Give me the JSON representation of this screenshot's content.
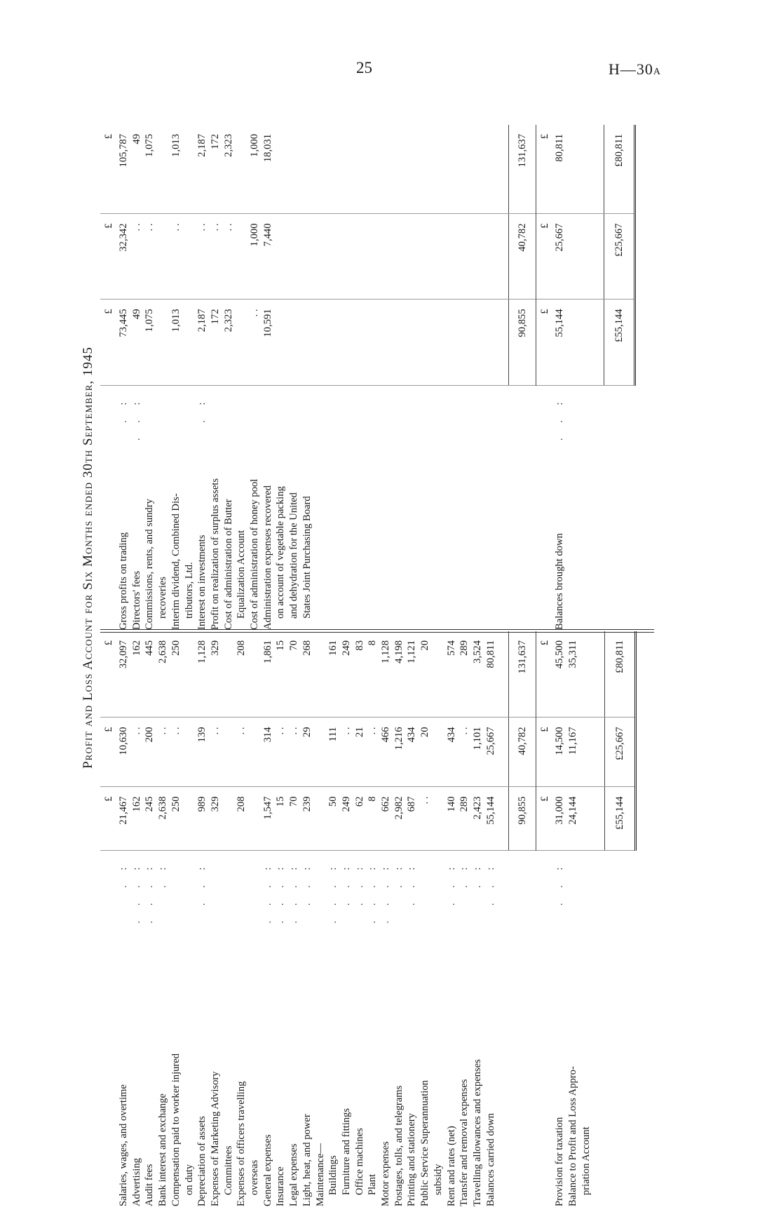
{
  "page": {
    "number": "25",
    "ref": "H—30",
    "ref_suffix": "A"
  },
  "title": "Profit and Loss Account for Six Months ended 30th September, 1945",
  "currency_header": [
    "£",
    "£",
    "£"
  ],
  "debit": {
    "lines": [
      {
        "label": "Salaries, wages, and overtime",
        "level": 0,
        "leader": ". :",
        "values": [
          "21,467",
          "10,630",
          "32,097"
        ]
      },
      {
        "label": "Advertising",
        "level": 0,
        "leader": ". . . :",
        "values": [
          "162",
          ". .",
          "162"
        ]
      },
      {
        "label": "Audit fees",
        "level": 0,
        "leader": ". . . :",
        "values": [
          "245",
          "200",
          "445"
        ]
      },
      {
        "label": "Bank interest and exchange",
        "level": 0,
        "leader": ". :",
        "values": [
          "2,638",
          ". .",
          "2,638"
        ]
      },
      {
        "label": "Compensation paid to worker injured",
        "level": 0,
        "leader": "",
        "values": [
          "250",
          ". .",
          "250"
        ]
      },
      {
        "label": "on duty",
        "level": 1,
        "leader": "",
        "values": [
          "",
          "",
          ""
        ]
      },
      {
        "label": "Depreciation of assets",
        "level": 0,
        "leader": ". . :",
        "values": [
          "989",
          "139",
          "1,128"
        ]
      },
      {
        "label": "Expenses of Marketing Advisory",
        "level": 0,
        "leader": "",
        "values": [
          "329",
          ". .",
          "329"
        ]
      },
      {
        "label": "Committees",
        "level": 1,
        "leader": "",
        "values": [
          "",
          "",
          ""
        ]
      },
      {
        "label": "Expenses of officers travelling",
        "level": 0,
        "leader": "",
        "values": [
          "208",
          ". .",
          "208"
        ]
      },
      {
        "label": "overseas",
        "level": 1,
        "leader": "",
        "values": [
          "",
          "",
          ""
        ]
      },
      {
        "label": "General expenses",
        "level": 0,
        "leader": ". . . :",
        "values": [
          "1,547",
          "314",
          "1,861"
        ]
      },
      {
        "label": "Insurance",
        "level": 0,
        "leader": ". . . :",
        "values": [
          "15",
          ". .",
          "15"
        ]
      },
      {
        "label": "Legal expenses",
        "level": 0,
        "leader": ". . . :",
        "values": [
          "70",
          ". .",
          "70"
        ]
      },
      {
        "label": "Light, heat, and power",
        "level": 0,
        "leader": ". . :",
        "values": [
          "239",
          "29",
          "268"
        ]
      },
      {
        "label": "Maintenance—",
        "level": 0,
        "leader": "",
        "values": [
          "",
          "",
          ""
        ]
      },
      {
        "label": "Buildings",
        "level": 1,
        "leader": ". . . :",
        "values": [
          "50",
          "111",
          "161"
        ]
      },
      {
        "label": "Furniture and fittings",
        "level": 1,
        "leader": ". . :",
        "values": [
          "249",
          ". .",
          "249"
        ]
      },
      {
        "label": "Office machines",
        "level": 1,
        "leader": ". . :",
        "values": [
          "62",
          "21",
          "83"
        ]
      },
      {
        "label": "Plant",
        "level": 1,
        "leader": ". . . :",
        "values": [
          "8",
          ". .",
          "8"
        ]
      },
      {
        "label": "Motor expenses",
        "level": 0,
        "leader": ". . . :",
        "values": [
          "662",
          "466",
          "1,128"
        ]
      },
      {
        "label": "Postages, tolls, and telegrams",
        "level": 0,
        "leader": ". :",
        "values": [
          "2,982",
          "1,216",
          "4,198"
        ]
      },
      {
        "label": "Printing and stationery",
        "level": 0,
        "leader": ". . :",
        "values": [
          "687",
          "434",
          "1,121"
        ]
      },
      {
        "label": "Public Service Superannuation",
        "level": 0,
        "leader": "",
        "values": [
          ". .",
          "20",
          "20"
        ]
      },
      {
        "label": "subsidy",
        "level": 1,
        "leader": "",
        "values": [
          "",
          "",
          ""
        ]
      },
      {
        "label": "Rent and rates (net)",
        "level": 0,
        "leader": ". . :",
        "values": [
          "140",
          "434",
          "574"
        ]
      },
      {
        "label": "Transfer and removal expenses",
        "level": 0,
        "leader": ". :",
        "values": [
          "289",
          ". .",
          "289"
        ]
      },
      {
        "label": "Travelling allowances and expenses",
        "level": 0,
        "leader": ". :",
        "values": [
          "2,423",
          "1,101",
          "3,524"
        ]
      },
      {
        "label": "Balances carried down",
        "level": 0,
        "leader": ". . :",
        "values": [
          "55,144",
          "25,667",
          "80,811"
        ]
      }
    ],
    "totals": [
      "90,855",
      "40,782",
      "131,637"
    ],
    "lower": {
      "lines": [
        {
          "label": "Provision for taxation",
          "level": 0,
          "leader": ". . :",
          "values": [
            "31,000",
            "14,500",
            "45,500"
          ]
        },
        {
          "label": "Balance to Profit and Loss Appro-",
          "level": 0,
          "leader": "",
          "values": [
            "24,144",
            "11,167",
            "35,311"
          ]
        },
        {
          "label": "priation Account",
          "level": 1,
          "leader": "",
          "values": [
            "",
            "",
            ""
          ]
        }
      ],
      "totals": [
        "£55,144",
        "£25,667",
        "£80,811"
      ]
    }
  },
  "credit": {
    "lines": [
      {
        "label": "Gross profits on trading",
        "level": 0,
        "leader": ". :",
        "values": [
          "73,445",
          "32,342",
          "105,787"
        ]
      },
      {
        "label": "Directors' fees",
        "level": 0,
        "leader": ". . :",
        "values": [
          "49",
          ". .",
          "49"
        ]
      },
      {
        "label": "Commissions, rents, and sundry",
        "level": 0,
        "leader": "",
        "values": [
          "1,075",
          ". .",
          "1,075"
        ]
      },
      {
        "label": "recoveries",
        "level": 1,
        "leader": "",
        "values": [
          "",
          "",
          ""
        ]
      },
      {
        "label": "Interim dividend, Combined Dis-",
        "level": 0,
        "leader": "",
        "values": [
          "1,013",
          ". .",
          "1,013"
        ]
      },
      {
        "label": "tributors, Ltd.",
        "level": 1,
        "leader": "",
        "values": [
          "",
          "",
          ""
        ]
      },
      {
        "label": "Interest on investments",
        "level": 0,
        "leader": ". :",
        "values": [
          "2,187",
          ". .",
          "2,187"
        ]
      },
      {
        "label": "Profit on realization of surplus assets",
        "level": 0,
        "leader": "",
        "values": [
          "172",
          ". .",
          "172"
        ]
      },
      {
        "label": "Cost of administration of Butter",
        "level": 0,
        "leader": "",
        "values": [
          "2,323",
          ". .",
          "2,323"
        ]
      },
      {
        "label": "Equalization Account",
        "level": 1,
        "leader": "",
        "values": [
          "",
          "",
          ""
        ]
      },
      {
        "label": "Cost of administration of honey pool",
        "level": 0,
        "leader": "",
        "values": [
          ". .",
          "1,000",
          "1,000"
        ]
      },
      {
        "label": "Administration expenses recovered",
        "level": 0,
        "leader": "",
        "values": [
          "10,591",
          "7,440",
          "18,031"
        ]
      },
      {
        "label": "on account of vegetable packing",
        "level": 1,
        "leader": "",
        "values": [
          "",
          "",
          ""
        ]
      },
      {
        "label": "and dehydration for the United",
        "level": 1,
        "leader": "",
        "values": [
          "",
          "",
          ""
        ]
      },
      {
        "label": "States Joint Purchasing Board",
        "level": 1,
        "leader": "",
        "values": [
          "",
          "",
          ""
        ]
      }
    ],
    "totals": [
      "90,855",
      "40,782",
      "131,637"
    ],
    "lower": {
      "lines": [
        {
          "label": "Balances brought down",
          "level": 0,
          "leader": ". . :",
          "values": [
            "55,144",
            "25,667",
            "80,811"
          ]
        }
      ],
      "totals": [
        "£55,144",
        "£25,667",
        "£80,811"
      ]
    }
  }
}
